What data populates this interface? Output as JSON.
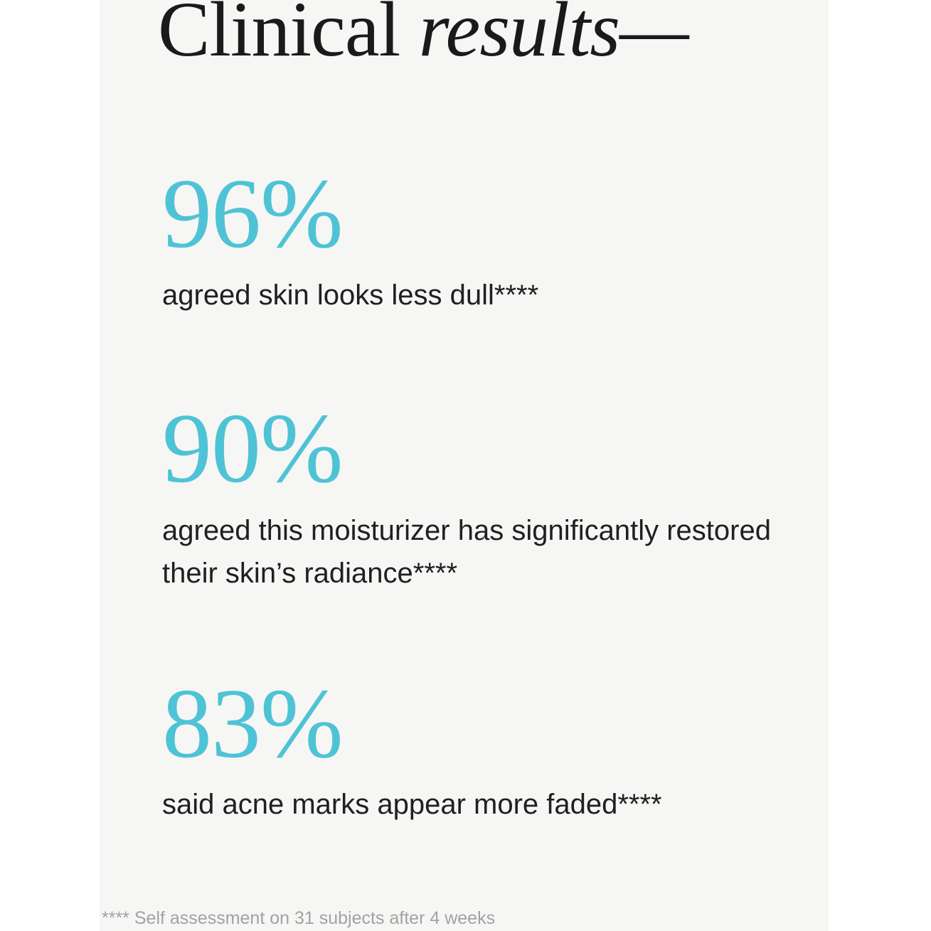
{
  "title": {
    "regular": "Clinical ",
    "italic": "results—"
  },
  "stats": [
    {
      "value": "96%",
      "caption": "agreed skin looks less dull****"
    },
    {
      "value": "90%",
      "caption": "agreed this moisturizer has significantly restored their skin’s radiance****"
    },
    {
      "value": "83%",
      "caption": "said acne marks appear more faded****"
    }
  ],
  "footnote": "**** Self assessment on 31 subjects after 4 weeks",
  "colors": {
    "accent_teal": "#4EC3D5",
    "panel_background": "#F6F6F5",
    "page_background": "#FFFFFF",
    "text_dark": "#1C1C1C",
    "footnote_gray": "#A2A2A2"
  }
}
